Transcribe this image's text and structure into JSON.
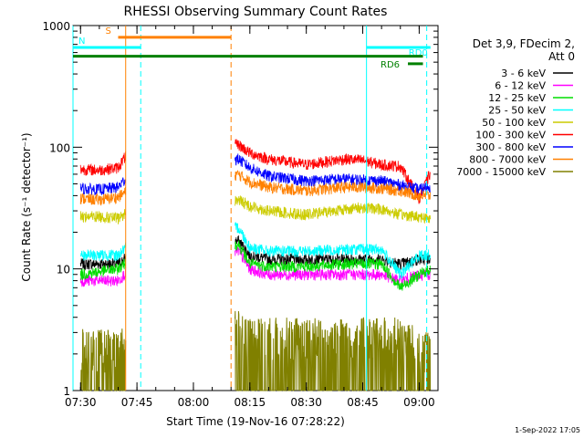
{
  "chart_data": {
    "type": "line",
    "title": "RHESSI Observing Summary Count Rates",
    "xlabel": "Start Time (19-Nov-16 07:28:22)",
    "ylabel": "Count Rate (s⁻¹ detector⁻¹)",
    "scale": {
      "y": "log"
    },
    "xlim": [
      "07:28",
      "09:05"
    ],
    "ylim": [
      1,
      1000
    ],
    "grid": false,
    "legend_position": "right",
    "x_ticks": [
      "07:30",
      "07:45",
      "08:00",
      "08:15",
      "08:30",
      "08:45",
      "09:00"
    ],
    "y_ticks": [
      {
        "value": 1,
        "label": "1"
      },
      {
        "value": 10,
        "label": "10"
      },
      {
        "value": 100,
        "label": "100"
      },
      {
        "value": 1000,
        "label": "1000"
      }
    ],
    "legend_header": [
      "Det 3,9, FDecim 2,",
      "Att 0"
    ],
    "series": [
      {
        "name": "3 - 6 keV",
        "color": "#000000",
        "x": [
          "07:30",
          "07:35",
          "07:40",
          "07:43",
          "08:12",
          "08:15",
          "08:20",
          "08:30",
          "08:40",
          "08:45",
          "08:50",
          "08:55",
          "09:00",
          "09:03"
        ],
        "values": [
          11,
          11,
          11,
          13,
          17,
          13,
          12,
          12,
          12,
          12,
          12,
          11,
          12,
          12
        ]
      },
      {
        "name": "6 - 12 keV",
        "color": "#ff00ff",
        "x": [
          "07:30",
          "07:35",
          "07:40",
          "07:43",
          "08:12",
          "08:15",
          "08:20",
          "08:30",
          "08:40",
          "08:45",
          "08:50",
          "08:55",
          "09:00",
          "09:03"
        ],
        "values": [
          8,
          8,
          8,
          10,
          14,
          10,
          9,
          9,
          9,
          9,
          9,
          8,
          9,
          9
        ]
      },
      {
        "name": "12 - 25 keV",
        "color": "#00dd00",
        "x": [
          "07:30",
          "07:35",
          "07:40",
          "07:43",
          "08:12",
          "08:15",
          "08:20",
          "08:30",
          "08:40",
          "08:45",
          "08:50",
          "08:55",
          "09:00",
          "09:03"
        ],
        "values": [
          9,
          9.5,
          10,
          12,
          16,
          11,
          10.5,
          10.5,
          11,
          11,
          11,
          7,
          9,
          10
        ]
      },
      {
        "name": "25 - 50 keV",
        "color": "#00ffff",
        "x": [
          "07:30",
          "07:35",
          "07:40",
          "07:43",
          "08:12",
          "08:15",
          "08:20",
          "08:30",
          "08:40",
          "08:45",
          "08:50",
          "08:55",
          "09:00",
          "09:03"
        ],
        "values": [
          13,
          13,
          13,
          16,
          22,
          15,
          14,
          14,
          14.5,
          14.5,
          14.5,
          9,
          13,
          13
        ]
      },
      {
        "name": "50 - 100 keV",
        "color": "#cccc00",
        "x": [
          "07:30",
          "07:35",
          "07:40",
          "07:43",
          "08:12",
          "08:15",
          "08:20",
          "08:30",
          "08:40",
          "08:45",
          "08:50",
          "08:55",
          "09:00",
          "09:03"
        ],
        "values": [
          27,
          27,
          26,
          30,
          37,
          33,
          30,
          28,
          31,
          32,
          31,
          28,
          27,
          26
        ]
      },
      {
        "name": "100 - 300 keV",
        "color": "#ff0000",
        "x": [
          "07:30",
          "07:35",
          "07:40",
          "07:43",
          "08:12",
          "08:15",
          "08:20",
          "08:30",
          "08:40",
          "08:45",
          "08:50",
          "08:55",
          "09:00",
          "09:03"
        ],
        "values": [
          66,
          65,
          68,
          95,
          105,
          90,
          80,
          72,
          80,
          78,
          72,
          70,
          38,
          62
        ]
      },
      {
        "name": "300 - 800 keV",
        "color": "#0000ff",
        "x": [
          "07:30",
          "07:35",
          "07:40",
          "07:43",
          "08:12",
          "08:15",
          "08:20",
          "08:30",
          "08:40",
          "08:45",
          "08:50",
          "08:55",
          "09:00",
          "09:03"
        ],
        "values": [
          46,
          45,
          47,
          60,
          80,
          68,
          58,
          53,
          55,
          54,
          53,
          49,
          45,
          48
        ]
      },
      {
        "name": "800 - 7000 keV",
        "color": "#ff8000",
        "x": [
          "07:30",
          "07:35",
          "07:40",
          "07:43",
          "08:12",
          "08:15",
          "08:20",
          "08:30",
          "08:40",
          "08:45",
          "08:50",
          "08:55",
          "09:00",
          "09:03"
        ],
        "values": [
          38,
          37,
          39,
          45,
          60,
          52,
          47,
          44,
          47,
          47,
          46,
          44,
          40,
          40
        ]
      },
      {
        "name": "7000 - 15000 keV",
        "color": "#808000",
        "x": [
          "07:30",
          "07:35",
          "07:40",
          "07:43",
          "08:12",
          "08:15",
          "08:20",
          "08:30",
          "08:40",
          "08:45",
          "08:50",
          "08:55",
          "09:00",
          "09:03"
        ],
        "values": [
          2,
          2,
          2,
          2.5,
          3,
          2.5,
          2.5,
          2.5,
          2.5,
          2.5,
          2.5,
          2.5,
          2,
          2
        ]
      }
    ],
    "annotations": [
      {
        "label": "S",
        "color": "#ff8000",
        "start": "07:40",
        "end": "08:10",
        "y": 800
      },
      {
        "label": "N",
        "color": "#00ffff",
        "start": "07:28",
        "end": "07:46",
        "y": 660
      },
      {
        "label": "RD0",
        "color": "#00ffff",
        "start": "08:46",
        "end": "09:03",
        "y": 660
      },
      {
        "label": "",
        "color": "#008000",
        "start": "07:28",
        "end": "09:01",
        "y": 560
      },
      {
        "label": "RD6",
        "color": "#008000",
        "start": "08:57",
        "end": "09:01",
        "y": 485
      }
    ],
    "vertical_lines": [
      {
        "x": "07:28",
        "color": "#00ffff",
        "style": "solid"
      },
      {
        "x": "07:42",
        "color": "#ff8000",
        "style": "solid"
      },
      {
        "x": "07:46",
        "color": "#00ffff",
        "style": "dashed"
      },
      {
        "x": "08:10",
        "color": "#ff8000",
        "style": "dashed"
      },
      {
        "x": "08:46",
        "color": "#00ffff",
        "style": "solid"
      },
      {
        "x": "09:02",
        "color": "#00ffff",
        "style": "dashed"
      }
    ],
    "data_gaps": [
      [
        "07:42",
        "08:11"
      ]
    ],
    "footer": "1-Sep-2022 17:05"
  }
}
